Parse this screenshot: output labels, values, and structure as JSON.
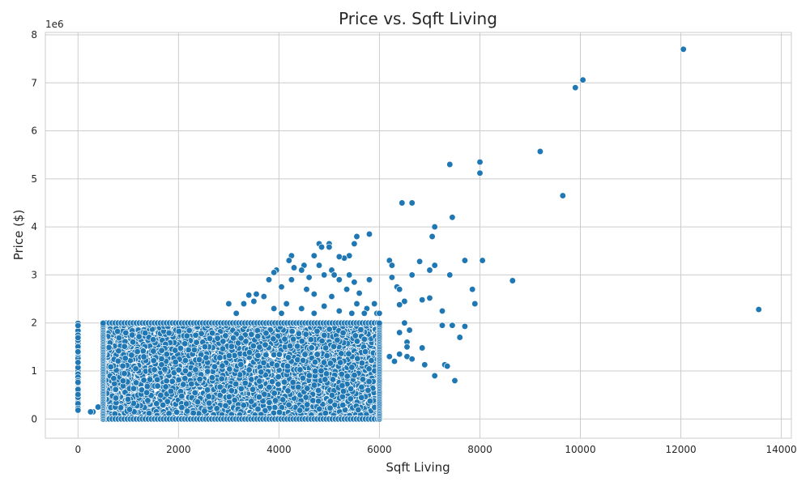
{
  "chart_data": {
    "type": "scatter",
    "title": "Price vs. Sqft Living",
    "xlabel": "Sqft Living",
    "ylabel": "Price ($)",
    "y_offset_label": "1e6",
    "xlim": [
      -650,
      14200
    ],
    "ylim": [
      -400000,
      8050000
    ],
    "x_ticks": [
      0,
      2000,
      4000,
      6000,
      8000,
      10000,
      12000,
      14000
    ],
    "x_tick_labels": [
      "0",
      "2000",
      "4000",
      "6000",
      "8000",
      "10000",
      "12000",
      "14000"
    ],
    "y_ticks": [
      0,
      1000000,
      2000000,
      3000000,
      4000000,
      5000000,
      6000000,
      7000000,
      8000000
    ],
    "y_tick_labels": [
      "0",
      "1",
      "2",
      "3",
      "4",
      "5",
      "6",
      "7",
      "8"
    ],
    "grid": true,
    "marker_color": "#1f77b4",
    "dense_region": {
      "description_values": {
        "x_min": 500,
        "x_max": 6000,
        "y_min": 0,
        "y_max": 2000000
      },
      "count": 5200
    },
    "zero_sqft_column": {
      "x": 0,
      "y_min": 0,
      "y_max": 2000000,
      "count": 55
    },
    "points": [
      [
        12050,
        7700000
      ],
      [
        10050,
        7060000
      ],
      [
        9900,
        6900000
      ],
      [
        9200,
        5570000
      ],
      [
        8000,
        5350000
      ],
      [
        8000,
        5120000
      ],
      [
        7400,
        5300000
      ],
      [
        9650,
        4650000
      ],
      [
        6450,
        4500000
      ],
      [
        6650,
        4500000
      ],
      [
        7450,
        4200000
      ],
      [
        7100,
        4000000
      ],
      [
        7050,
        3800000
      ],
      [
        13550,
        2280000
      ],
      [
        8650,
        2880000
      ],
      [
        7000,
        3100000
      ],
      [
        7100,
        3200000
      ],
      [
        7700,
        3300000
      ],
      [
        8050,
        3300000
      ],
      [
        6800,
        3280000
      ],
      [
        6200,
        3300000
      ],
      [
        6250,
        3200000
      ],
      [
        6650,
        3000000
      ],
      [
        7400,
        3000000
      ],
      [
        7850,
        2700000
      ],
      [
        7000,
        2520000
      ],
      [
        6850,
        2480000
      ],
      [
        7900,
        2400000
      ],
      [
        7250,
        2250000
      ],
      [
        6350,
        2750000
      ],
      [
        6400,
        2700000
      ],
      [
        6500,
        2450000
      ],
      [
        6400,
        2380000
      ],
      [
        6250,
        2950000
      ],
      [
        7250,
        1950000
      ],
      [
        7700,
        1930000
      ],
      [
        7450,
        1950000
      ],
      [
        7600,
        1700000
      ],
      [
        6400,
        1800000
      ],
      [
        6600,
        1850000
      ],
      [
        6500,
        2000000
      ],
      [
        6550,
        1600000
      ],
      [
        6550,
        1500000
      ],
      [
        6850,
        1480000
      ],
      [
        6200,
        1300000
      ],
      [
        6400,
        1350000
      ],
      [
        6550,
        1300000
      ],
      [
        6650,
        1250000
      ],
      [
        6300,
        1200000
      ],
      [
        6900,
        1130000
      ],
      [
        7300,
        1130000
      ],
      [
        7350,
        1100000
      ],
      [
        7100,
        900000
      ],
      [
        7500,
        800000
      ],
      [
        5800,
        3850000
      ],
      [
        5550,
        3800000
      ],
      [
        5500,
        3650000
      ],
      [
        5000,
        3650000
      ],
      [
        4800,
        3650000
      ],
      [
        4850,
        3580000
      ],
      [
        5000,
        3580000
      ],
      [
        5400,
        3400000
      ],
      [
        5300,
        3350000
      ],
      [
        5200,
        3380000
      ],
      [
        4250,
        3400000
      ],
      [
        4200,
        3300000
      ],
      [
        4700,
        3400000
      ],
      [
        3950,
        3100000
      ],
      [
        3900,
        3050000
      ],
      [
        4300,
        3150000
      ],
      [
        4500,
        3200000
      ],
      [
        4450,
        3100000
      ],
      [
        4800,
        3200000
      ],
      [
        5050,
        3100000
      ],
      [
        4600,
        2950000
      ],
      [
        4900,
        3000000
      ],
      [
        5100,
        3000000
      ],
      [
        5400,
        3000000
      ],
      [
        5800,
        2900000
      ],
      [
        3800,
        2900000
      ],
      [
        4050,
        2750000
      ],
      [
        4250,
        2900000
      ],
      [
        5200,
        2900000
      ],
      [
        5500,
        2850000
      ],
      [
        3400,
        2580000
      ],
      [
        3550,
        2600000
      ],
      [
        3700,
        2550000
      ],
      [
        4550,
        2700000
      ],
      [
        4700,
        2600000
      ],
      [
        5050,
        2550000
      ],
      [
        5350,
        2700000
      ],
      [
        5600,
        2620000
      ],
      [
        3300,
        2400000
      ],
      [
        3500,
        2450000
      ],
      [
        3000,
        2400000
      ],
      [
        3150,
        2200000
      ],
      [
        3900,
        2300000
      ],
      [
        4150,
        2400000
      ],
      [
        4450,
        2300000
      ],
      [
        4700,
        2200000
      ],
      [
        4900,
        2350000
      ],
      [
        5200,
        2250000
      ],
      [
        5450,
        2200000
      ],
      [
        5750,
        2300000
      ],
      [
        5900,
        2400000
      ],
      [
        5950,
        2200000
      ],
      [
        6000,
        2200000
      ],
      [
        5550,
        2400000
      ],
      [
        5700,
        2200000
      ],
      [
        4050,
        2200000
      ],
      [
        300,
        150000
      ],
      [
        400,
        250000
      ],
      [
        250,
        150000
      ]
    ]
  }
}
